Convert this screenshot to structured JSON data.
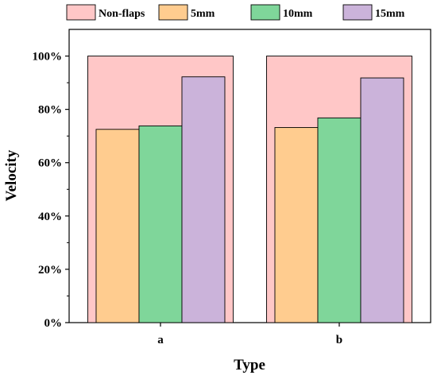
{
  "chart_data": {
    "type": "bar",
    "categories": [
      "a",
      "b"
    ],
    "series": [
      {
        "name": "Non-flaps",
        "values": [
          100,
          100
        ],
        "color": "#FFC7C7"
      },
      {
        "name": "5mm",
        "values": [
          72.5,
          73.2
        ],
        "color": "#FFCC8F"
      },
      {
        "name": "10mm",
        "values": [
          73.8,
          76.8
        ],
        "color": "#7FD69A"
      },
      {
        "name": "15mm",
        "values": [
          92.2,
          91.8
        ],
        "color": "#CBB3DA"
      }
    ],
    "bar_layout": "overlay-background-first",
    "xlabel": "Type",
    "ylabel": "Velocity",
    "ylim": [
      0,
      110
    ],
    "yticks": [
      0,
      20,
      40,
      60,
      80,
      100
    ],
    "ytick_labels": [
      "0%",
      "20%",
      "40%",
      "60%",
      "80%",
      "100%"
    ],
    "grid": false,
    "legend": "top"
  }
}
